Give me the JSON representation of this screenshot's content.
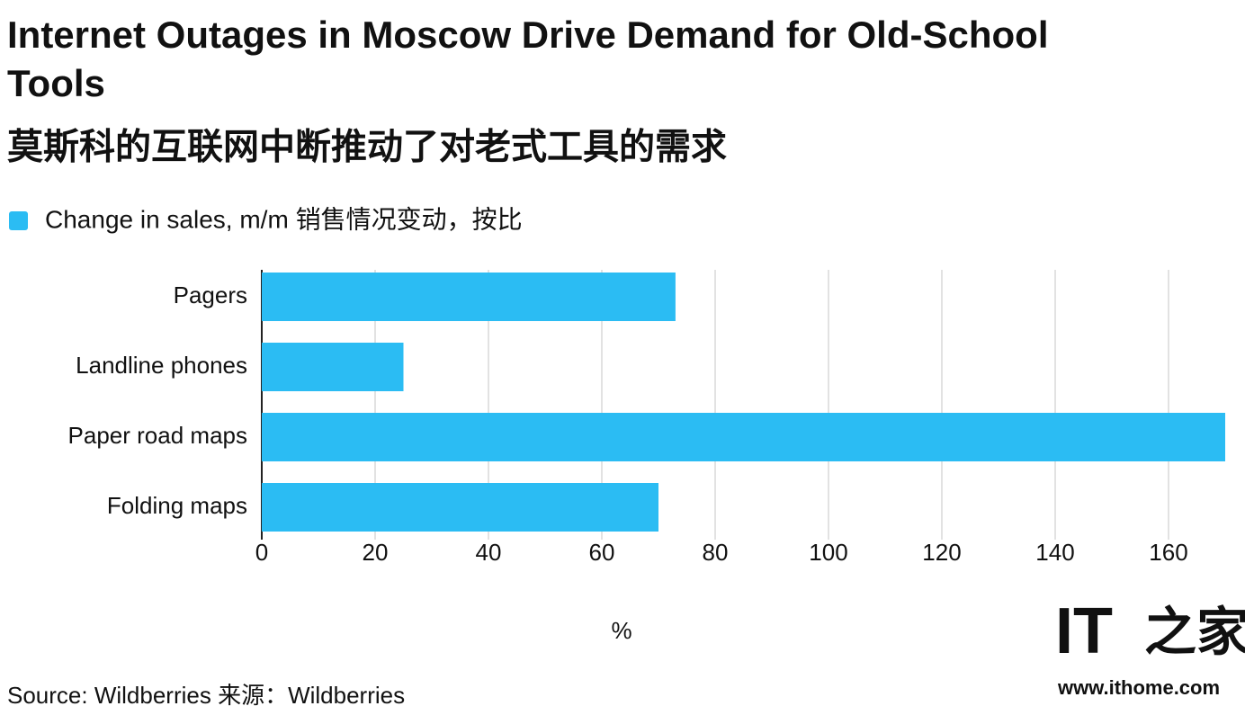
{
  "chart_data": {
    "type": "barh",
    "title": "Internet Outages in Moscow Drive Demand for Old-School Tools",
    "subtitle": "莫斯科的互联网中断推动了对老式工具的需求",
    "categories": [
      "Pagers",
      "Landline phones",
      "Paper road maps",
      "Folding maps"
    ],
    "series": [
      {
        "name": "Change in sales, m/m  销售情况变动，按比",
        "color": "#2bbcf3",
        "values": [
          73,
          25,
          170,
          70
        ]
      }
    ],
    "xlabel": "%",
    "xlim": [
      0,
      170
    ],
    "xticks": [
      0,
      20,
      40,
      60,
      80,
      100,
      120,
      140,
      160
    ],
    "grid": true,
    "source": "Source: Wildberries   来源：Wildberries"
  },
  "watermark": {
    "logo_latin": "IT",
    "logo_cjk": "之家",
    "url": "www.ithome.com"
  }
}
